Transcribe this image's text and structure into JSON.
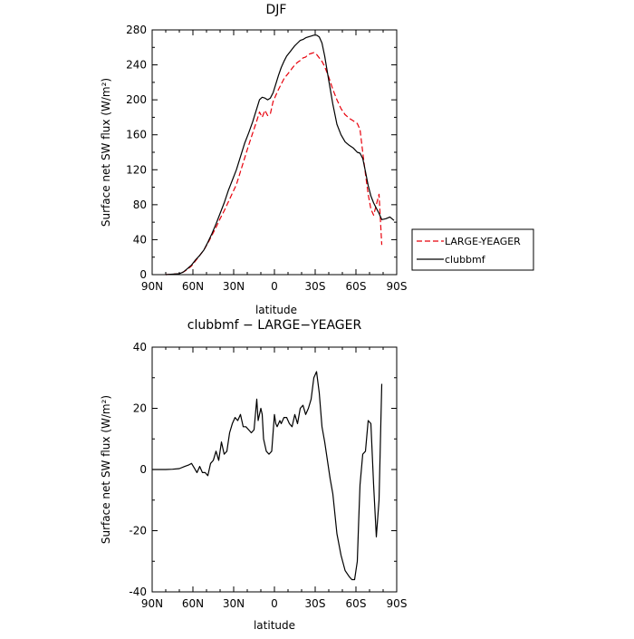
{
  "chart_data": [
    {
      "type": "line",
      "title": "DJF",
      "xlabel": "latitude",
      "ylabel": "Surface net SW flux (W/m²)",
      "xlim": [
        90,
        -90
      ],
      "ylim": [
        0,
        280
      ],
      "x_ticks": [
        90,
        60,
        30,
        0,
        -30,
        -60,
        -90
      ],
      "x_tick_labels": [
        "90N",
        "60N",
        "30N",
        "0",
        "30S",
        "60S",
        "90S"
      ],
      "y_ticks": [
        0,
        40,
        80,
        120,
        160,
        200,
        240,
        280
      ],
      "legend_position": "right",
      "series": [
        {
          "name": "LARGE-YEAGER",
          "color": "#e8000b",
          "dash": "dashed",
          "x": [
            80,
            75,
            70,
            67,
            64,
            61,
            58,
            55,
            52,
            49,
            46,
            43,
            40,
            37,
            34,
            31,
            28,
            25,
            22,
            19,
            16,
            13,
            11,
            9,
            7,
            5,
            3,
            1,
            -1,
            -3,
            -5,
            -7,
            -9,
            -11,
            -13,
            -15,
            -17,
            -19,
            -21,
            -23,
            -25,
            -27,
            -29,
            -31,
            -33,
            -35,
            -37,
            -40,
            -43,
            -46,
            -49,
            -52,
            -55,
            -58,
            -61,
            -63,
            -65,
            -67,
            -69,
            -71,
            -73,
            -75,
            -77,
            -79
          ],
          "y": [
            0,
            0.5,
            1,
            3,
            6,
            10,
            16,
            22,
            28,
            36,
            45,
            54,
            64,
            73,
            83,
            93,
            103,
            118,
            133,
            148,
            162,
            176,
            186,
            180,
            188,
            182,
            184,
            198,
            205,
            212,
            218,
            224,
            228,
            232,
            236,
            240,
            243,
            245,
            248,
            249,
            252,
            253,
            254,
            252,
            248,
            244,
            238,
            226,
            212,
            200,
            190,
            183,
            179,
            176,
            173,
            166,
            140,
            115,
            92,
            75,
            68,
            80,
            92,
            34
          ]
        },
        {
          "name": "clubbmf",
          "color": "#000000",
          "dash": "solid",
          "x": [
            80,
            75,
            70,
            67,
            64,
            61,
            58,
            55,
            52,
            49,
            46,
            43,
            40,
            37,
            34,
            31,
            28,
            25,
            22,
            19,
            16,
            13,
            11,
            9,
            7,
            5,
            3,
            1,
            -1,
            -3,
            -5,
            -7,
            -9,
            -11,
            -13,
            -15,
            -17,
            -19,
            -21,
            -23,
            -25,
            -27,
            -29,
            -31,
            -33,
            -35,
            -37,
            -40,
            -43,
            -46,
            -49,
            -52,
            -55,
            -58,
            -61,
            -63,
            -65,
            -67,
            -69,
            -71,
            -73,
            -75,
            -77,
            -79,
            -82,
            -85,
            -88
          ],
          "y": [
            0,
            0.5,
            1,
            3,
            7,
            11,
            17,
            22,
            28,
            37,
            47,
            58,
            70,
            82,
            96,
            108,
            120,
            135,
            150,
            162,
            175,
            190,
            200,
            203,
            202,
            200,
            202,
            208,
            218,
            228,
            237,
            244,
            250,
            254,
            258,
            262,
            265,
            268,
            269,
            271,
            272,
            273,
            274,
            274,
            272,
            265,
            250,
            222,
            195,
            172,
            160,
            152,
            148,
            145,
            140,
            139,
            133,
            118,
            102,
            90,
            82,
            76,
            70,
            63,
            64,
            66,
            62
          ]
        }
      ]
    },
    {
      "type": "line",
      "title": "clubbmf − LARGE−YEAGER",
      "xlabel": "latitude",
      "ylabel": "Surface net SW flux (W/m²)",
      "xlim": [
        90,
        -90
      ],
      "ylim": [
        -40,
        40
      ],
      "x_ticks": [
        90,
        60,
        30,
        0,
        -30,
        -60,
        -90
      ],
      "x_tick_labels": [
        "90N",
        "60N",
        "30N",
        "0",
        "30S",
        "60S",
        "90S"
      ],
      "y_ticks": [
        -40,
        -20,
        0,
        20,
        40
      ],
      "series": [
        {
          "name": "",
          "color": "#000000",
          "dash": "solid",
          "x": [
            90,
            85,
            80,
            75,
            70,
            66,
            63,
            61,
            59,
            57,
            55,
            53,
            51,
            49,
            47,
            45,
            43,
            41,
            39,
            37,
            35,
            33,
            31,
            29,
            27,
            25,
            23,
            21,
            19,
            17,
            15,
            13,
            12,
            11,
            10,
            9,
            8,
            6,
            4,
            2,
            0,
            -1,
            -2,
            -4,
            -5,
            -7,
            -9,
            -11,
            -13,
            -15,
            -17,
            -19,
            -21,
            -23,
            -25,
            -27,
            -29,
            -31,
            -33,
            -35,
            -37,
            -39,
            -41,
            -43,
            -46,
            -49,
            -52,
            -55,
            -57,
            -59,
            -61,
            -62,
            -63,
            -65,
            -67,
            -69,
            -71,
            -73,
            -75,
            -77,
            -79
          ],
          "y": [
            0,
            0,
            0,
            0.1,
            0.3,
            1,
            1.5,
            2,
            0.5,
            -1,
            1,
            -1,
            -1,
            -2,
            2,
            3,
            6,
            3,
            9,
            5,
            6,
            12,
            15,
            17,
            16,
            18,
            14,
            14,
            13,
            12,
            13,
            23,
            16,
            18,
            20,
            18,
            10,
            6,
            5,
            6,
            18,
            15,
            14,
            16,
            15,
            17,
            17,
            15,
            14,
            18,
            15,
            20,
            21,
            18,
            20,
            23,
            30,
            32,
            25,
            14,
            9,
            3,
            -3,
            -8,
            -21,
            -28,
            -33,
            -35,
            -36,
            -36,
            -30,
            -17,
            -5,
            5,
            6,
            16,
            15,
            -5,
            -22,
            -10,
            28
          ]
        }
      ]
    }
  ]
}
